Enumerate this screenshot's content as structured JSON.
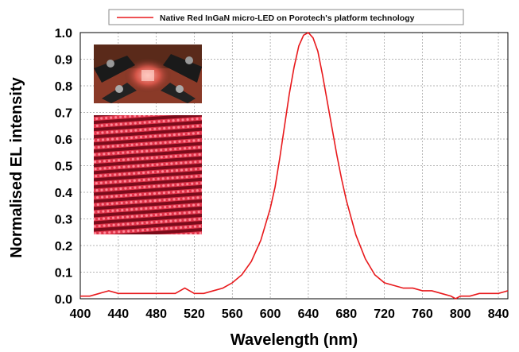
{
  "chart_data": {
    "type": "line",
    "xlabel": "Wavelength (nm)",
    "ylabel": "Normalised EL intensity",
    "xlim": [
      400,
      850
    ],
    "ylim": [
      0,
      1.0
    ],
    "x_ticks": [
      "400",
      "440",
      "480",
      "520",
      "560",
      "600",
      "640",
      "680",
      "720",
      "760",
      "800",
      "840"
    ],
    "y_ticks": [
      "0.0",
      "0.1",
      "0.2",
      "0.3",
      "0.4",
      "0.5",
      "0.6",
      "0.7",
      "0.8",
      "0.9",
      "1.0"
    ],
    "grid": true,
    "legend_position": "top",
    "series": [
      {
        "name": "Native Red InGaN micro-LED on Porotech's platform technology",
        "color": "#e8191c",
        "x": [
          400,
          410,
          420,
          430,
          440,
          450,
          460,
          470,
          480,
          490,
          500,
          505,
          510,
          515,
          520,
          530,
          540,
          550,
          560,
          570,
          580,
          590,
          600,
          605,
          610,
          615,
          620,
          625,
          630,
          635,
          640,
          645,
          650,
          655,
          660,
          665,
          670,
          675,
          680,
          690,
          700,
          710,
          720,
          730,
          740,
          750,
          760,
          770,
          780,
          790,
          795,
          800,
          810,
          820,
          830,
          840,
          850
        ],
        "values": [
          0.01,
          0.01,
          0.02,
          0.03,
          0.02,
          0.02,
          0.02,
          0.02,
          0.02,
          0.02,
          0.02,
          0.03,
          0.04,
          0.03,
          0.02,
          0.02,
          0.03,
          0.04,
          0.06,
          0.09,
          0.14,
          0.22,
          0.34,
          0.42,
          0.53,
          0.65,
          0.77,
          0.87,
          0.95,
          0.99,
          1.0,
          0.98,
          0.93,
          0.84,
          0.74,
          0.64,
          0.54,
          0.45,
          0.37,
          0.24,
          0.15,
          0.09,
          0.06,
          0.05,
          0.04,
          0.04,
          0.03,
          0.03,
          0.02,
          0.01,
          0.0,
          0.01,
          0.01,
          0.02,
          0.02,
          0.02,
          0.03
        ]
      }
    ]
  },
  "inset_images": [
    {
      "name": "micro-LED probe station photo"
    },
    {
      "name": "red micro-LED array emission photo"
    }
  ]
}
